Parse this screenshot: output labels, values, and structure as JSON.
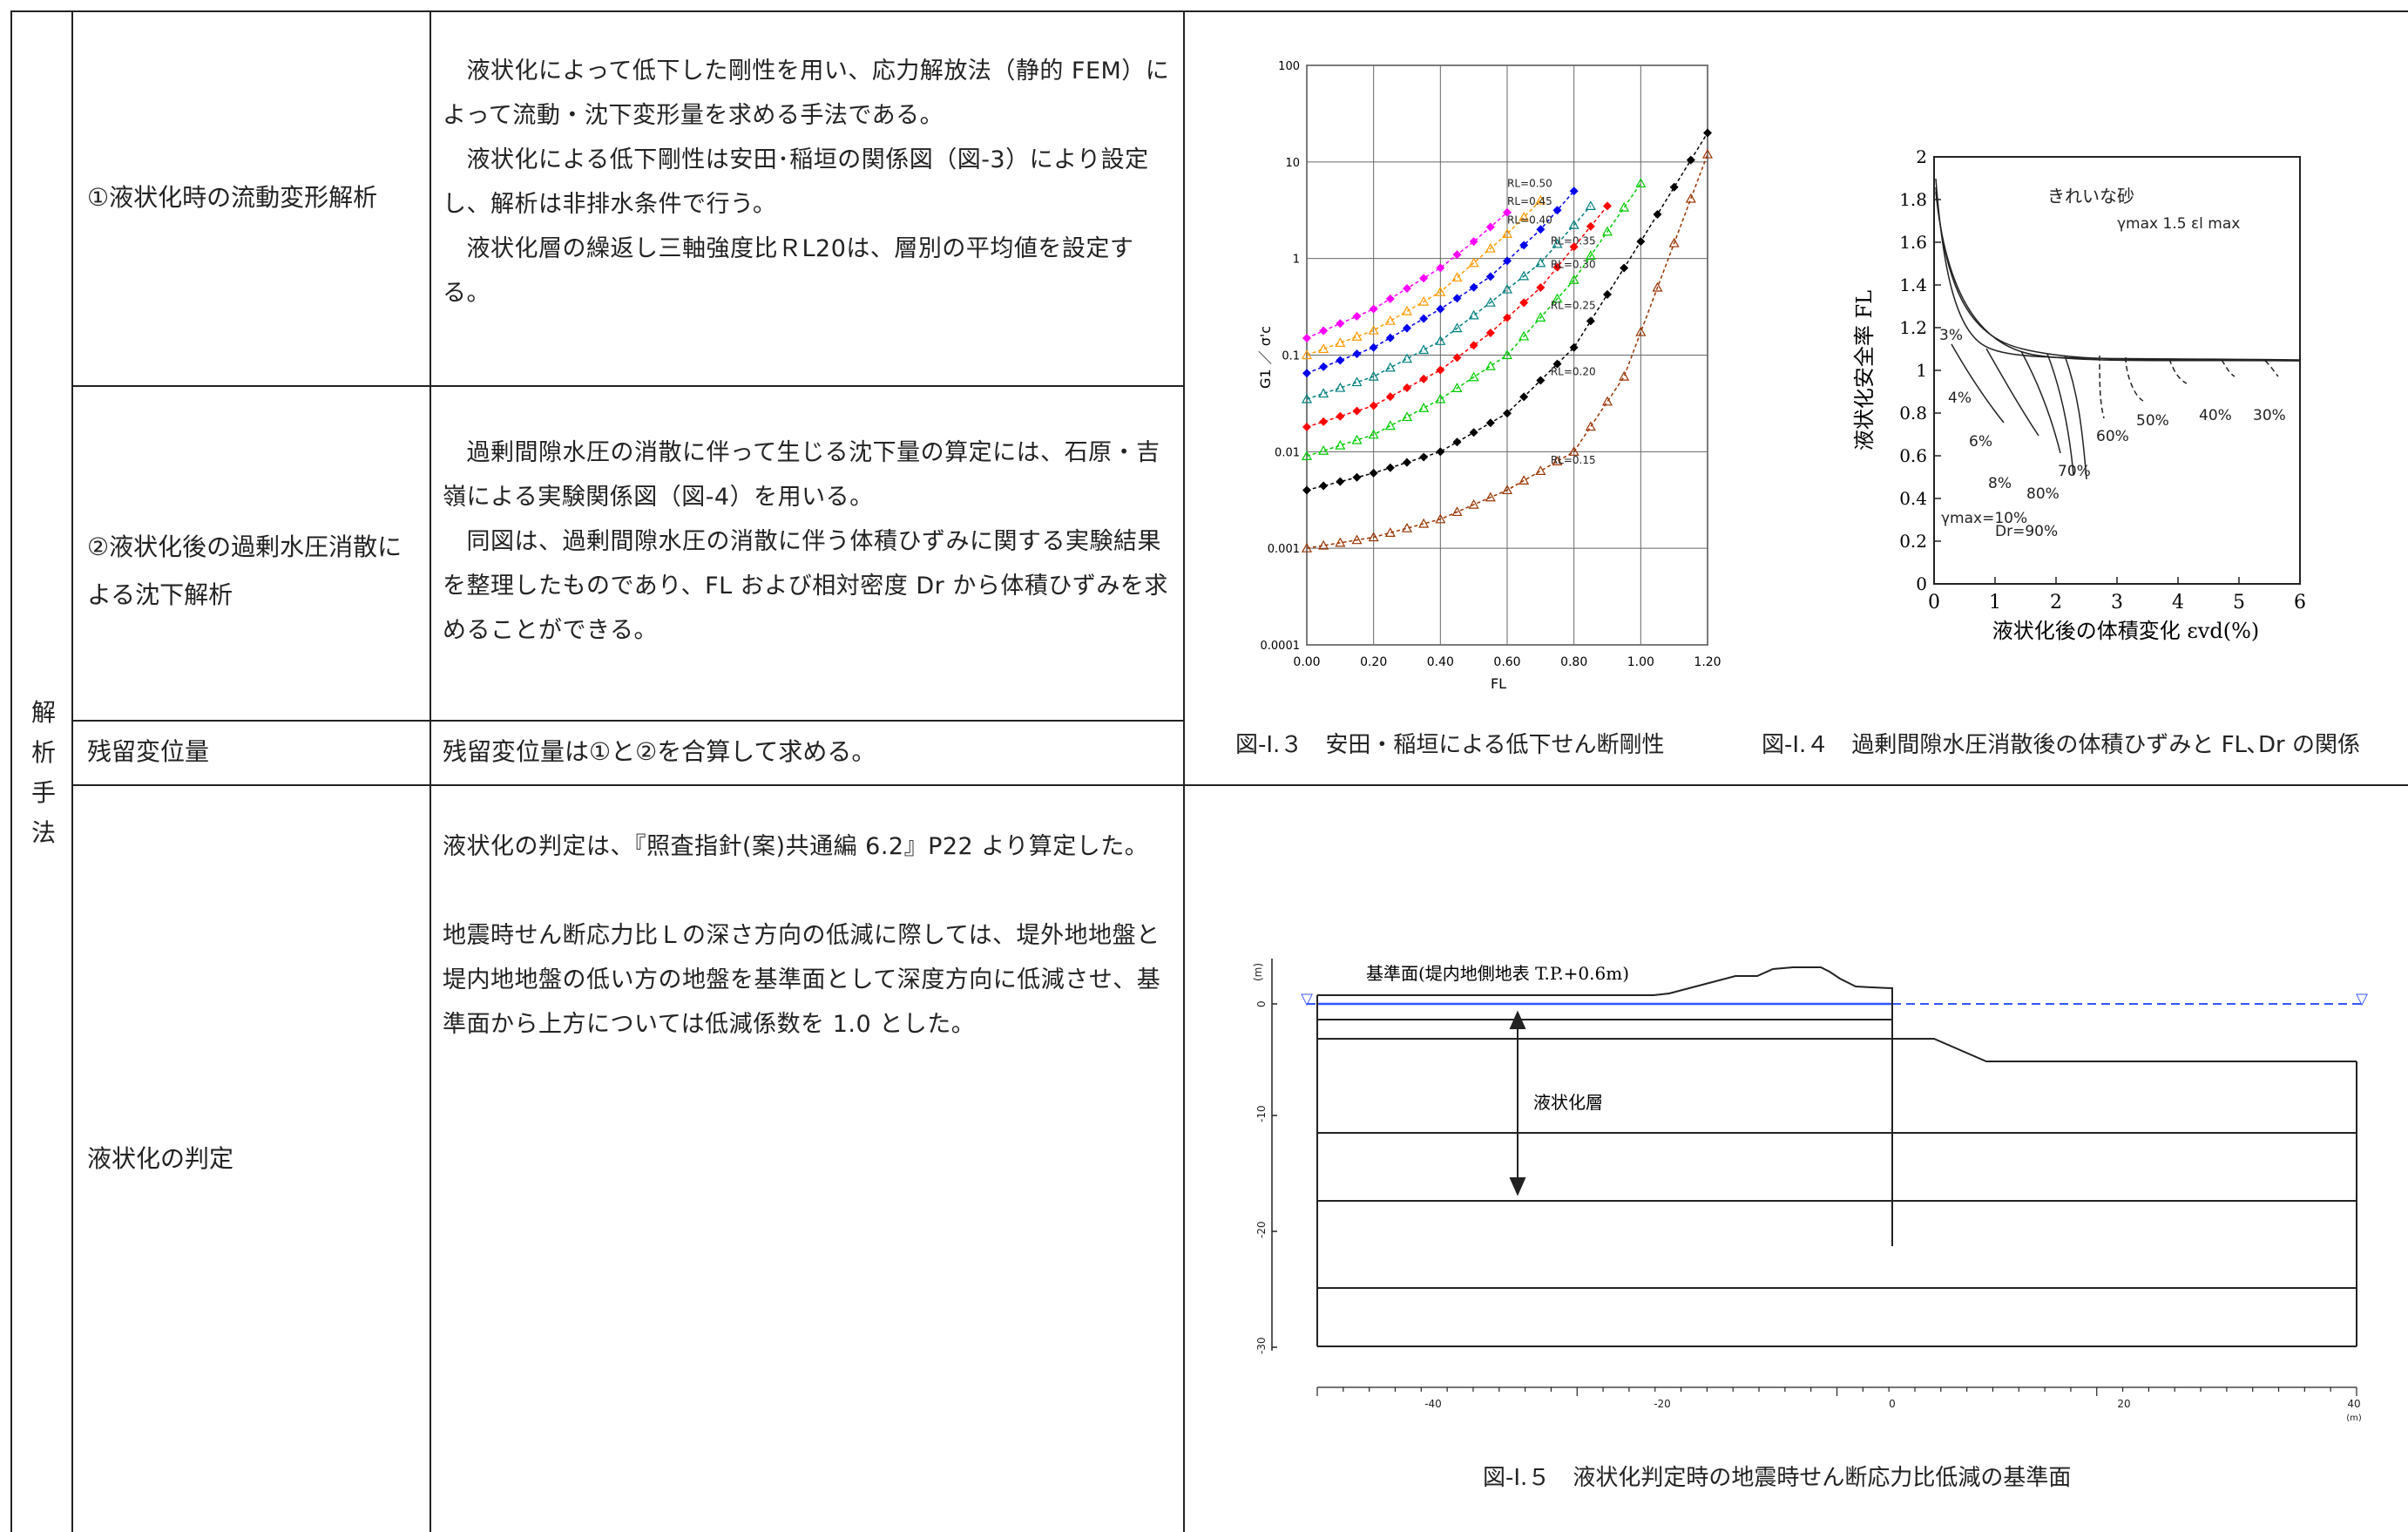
{
  "table": {
    "category_chars": [
      "解",
      "析",
      "手",
      "法"
    ],
    "rows": [
      {
        "label": "①液状化時の流動変形解析",
        "paragraphs": [
          "　液状化によって低下した剛性を用い、応力解放法（静的 FEM）によって流動・沈下変形量を求める手法である。",
          "　液状化による低下剛性は安田･稲垣の関係図（図-3）により設定し、解析は非排水条件で行う。",
          "　液状化層の繰返し三軸強度比ＲL20は、層別の平均値を設定する。"
        ]
      },
      {
        "label": "②液状化後の過剰水圧消散による沈下解析",
        "paragraphs": [
          "　過剰間隙水圧の消散に伴って生じる沈下量の算定には、石原・吉嶺による実験関係図（図-4）を用いる。",
          "　同図は、過剰間隙水圧の消散に伴う体積ひずみに関する実験結果を整理したものであり、FL および相対密度 Dr から体積ひずみを求めることができる。"
        ]
      },
      {
        "label": "残留変位量",
        "paragraphs": [
          "残留変位量は①と②を合算して求める。"
        ]
      },
      {
        "label": "液状化の判定",
        "paragraphs": [
          "液状化の判定は、『照査指針(案)共通編 6.2』P22 より算定した。",
          "",
          "地震時せん断応力比Ｌの深さ方向の低減に際しては、堤外地地盤と堤内地地盤の低い方の地盤を基準面として深度方向に低減させ、基準面から上方については低減係数を 1.0 とした。"
        ]
      }
    ]
  },
  "figures": {
    "fig3_caption": "図-Ⅰ.３　安田・稲垣による低下せん断剛性",
    "fig4_caption": "図-Ⅰ.４　過剰間隙水圧消散後の体積ひずみと FL､Dr の関係",
    "fig5_caption": "図-Ⅰ.５　液状化判定時の地震時せん断応力比低減の基準面"
  },
  "chart_data": [
    {
      "type": "line",
      "xlabel": "FL",
      "ylabel": "G1 ／ σ'c",
      "xlim": [
        0,
        1.2
      ],
      "ylim": [
        0.0001,
        100
      ],
      "yscale": "log",
      "grid": true,
      "x_ticks": [
        "0.00",
        "0.20",
        "0.40",
        "0.60",
        "0.80",
        "1.00",
        "1.20"
      ],
      "y_ticks": [
        "100",
        "10",
        "1",
        "0.1",
        "0.01",
        "0.001",
        "0.0001"
      ],
      "series": [
        {
          "name": "RL=0.50",
          "color": "#ff00ff",
          "marker": "diamond",
          "x_start": 0.0,
          "x_end": 1.2,
          "points": [
            [
              0.0,
              0.15
            ],
            [
              0.2,
              0.3
            ],
            [
              0.4,
              0.8
            ],
            [
              0.5,
              1.5
            ],
            [
              0.6,
              3.0
            ]
          ],
          "label_at": [
            0.6,
            5.5
          ]
        },
        {
          "name": "RL=0.45",
          "color": "#ff9900",
          "marker": "triangle",
          "x_start": 0.0,
          "x_end": 1.2,
          "points": [
            [
              0.0,
              0.1
            ],
            [
              0.2,
              0.18
            ],
            [
              0.4,
              0.45
            ],
            [
              0.5,
              0.9
            ],
            [
              0.6,
              1.8
            ],
            [
              0.7,
              4.0
            ]
          ],
          "label_at": [
            0.6,
            3.6
          ]
        },
        {
          "name": "RL=0.40",
          "color": "#0000ee",
          "marker": "diamond",
          "x_start": 0.0,
          "x_end": 1.2,
          "points": [
            [
              0.0,
              0.065
            ],
            [
              0.2,
              0.12
            ],
            [
              0.4,
              0.3
            ],
            [
              0.55,
              0.65
            ],
            [
              0.7,
              2.0
            ],
            [
              0.8,
              5.0
            ]
          ],
          "label_at": [
            0.6,
            2.3
          ]
        },
        {
          "name": "RL=0.35",
          "color": "#008080",
          "marker": "triangle",
          "x_start": 0.0,
          "x_end": 1.2,
          "points": [
            [
              0.0,
              0.035
            ],
            [
              0.2,
              0.06
            ],
            [
              0.4,
              0.14
            ],
            [
              0.55,
              0.35
            ],
            [
              0.7,
              0.9
            ],
            [
              0.85,
              3.5
            ]
          ],
          "label_at": [
            0.73,
            1.4
          ]
        },
        {
          "name": "RL=0.30",
          "color": "#ff0000",
          "marker": "diamond",
          "x_start": 0.0,
          "x_end": 1.2,
          "points": [
            [
              0.0,
              0.018
            ],
            [
              0.2,
              0.03
            ],
            [
              0.4,
              0.07
            ],
            [
              0.55,
              0.17
            ],
            [
              0.7,
              0.5
            ],
            [
              0.9,
              3.5
            ]
          ],
          "label_at": [
            0.73,
            0.8
          ]
        },
        {
          "name": "RL=0.25",
          "color": "#00cc00",
          "marker": "triangle",
          "x_start": 0.0,
          "x_end": 1.2,
          "points": [
            [
              0.0,
              0.009
            ],
            [
              0.2,
              0.015
            ],
            [
              0.4,
              0.035
            ],
            [
              0.6,
              0.1
            ],
            [
              0.8,
              0.6
            ],
            [
              1.0,
              6.0
            ]
          ],
          "label_at": [
            0.73,
            0.3
          ]
        },
        {
          "name": "RL=0.20",
          "color": "#000000",
          "marker": "diamond",
          "x_start": 0.0,
          "x_end": 1.2,
          "points": [
            [
              0.0,
              0.004
            ],
            [
              0.2,
              0.006
            ],
            [
              0.4,
              0.01
            ],
            [
              0.6,
              0.025
            ],
            [
              0.8,
              0.12
            ],
            [
              1.0,
              1.5
            ],
            [
              1.2,
              20
            ]
          ],
          "label_at": [
            0.73,
            0.062
          ]
        },
        {
          "name": "RL=0.15",
          "color": "#993300",
          "marker": "triangle",
          "x_start": 0.0,
          "x_end": 1.2,
          "points": [
            [
              0.0,
              0.001
            ],
            [
              0.2,
              0.0013
            ],
            [
              0.4,
              0.002
            ],
            [
              0.6,
              0.004
            ],
            [
              0.8,
              0.01
            ],
            [
              0.95,
              0.06
            ],
            [
              1.05,
              0.5
            ],
            [
              1.2,
              12
            ]
          ],
          "label_at": [
            0.73,
            0.0075
          ]
        }
      ]
    },
    {
      "type": "line",
      "title": "きれいな砂",
      "annotation": "γmax 1.5 εl max",
      "xlabel": "液状化後の体積変化 εvd(%)",
      "ylabel": "液状化安全率 FL",
      "xlim": [
        0,
        6
      ],
      "ylim": [
        0,
        2
      ],
      "x_ticks": [
        "0",
        "1",
        "2",
        "3",
        "4",
        "5",
        "6"
      ],
      "y_ticks": [
        "0",
        "0.2",
        "0.4",
        "0.6",
        "0.8",
        "1",
        "1.2",
        "1.4",
        "1.6",
        "1.8",
        "2"
      ],
      "labels": [
        "3%",
        "4%",
        "6%",
        "8%",
        "γmax=10%",
        "80%",
        "Dr=90%",
        "70%",
        "60%",
        "50%",
        "40%",
        "30%"
      ]
    },
    {
      "type": "diagram",
      "y_axis_unit": "(m)",
      "x_axis_unit": "(m)",
      "x_ticks": [
        "-40",
        "-20",
        "0",
        "20",
        "40"
      ],
      "y_ticks": [
        "0",
        "-10",
        "-20",
        "-30"
      ],
      "labels": {
        "datum": "基準面(堤内地側地表 T.P.+0.6m)",
        "layer": "液状化層"
      }
    }
  ]
}
